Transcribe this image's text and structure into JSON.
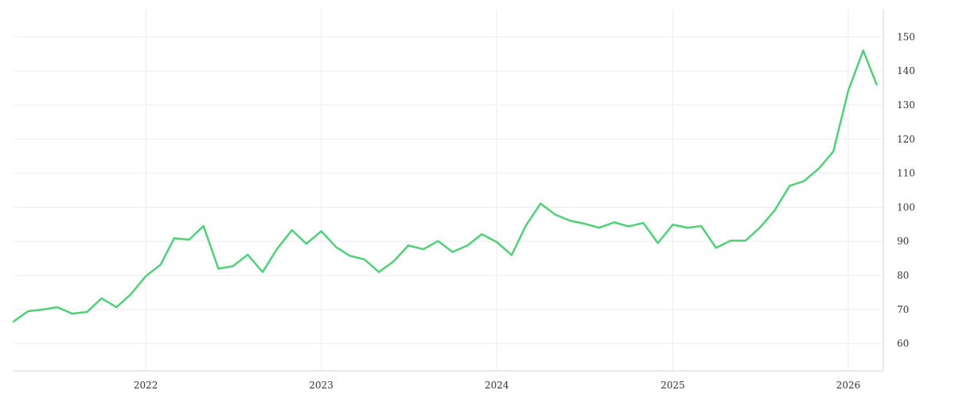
{
  "chart_data": {
    "type": "line",
    "title": "",
    "xlabel": "",
    "ylabel": "",
    "x_axis": {
      "type": "date",
      "range": [
        "2021-04-01",
        "2026-03-15"
      ],
      "ticks": [
        {
          "date": "2022-01-01",
          "label": "2022"
        },
        {
          "date": "2023-01-01",
          "label": "2023"
        },
        {
          "date": "2024-01-01",
          "label": "2024"
        },
        {
          "date": "2025-01-01",
          "label": "2025"
        },
        {
          "date": "2026-01-01",
          "label": "2026"
        }
      ]
    },
    "y_axis": {
      "position": "right",
      "range": [
        52,
        158
      ],
      "ticks": [
        60,
        70,
        80,
        90,
        100,
        110,
        120,
        130,
        140,
        150
      ]
    },
    "grid": true,
    "legend": "none",
    "series": [
      {
        "color": "#4fd17a",
        "points": [
          [
            "2021-04-01",
            66.5
          ],
          [
            "2021-05-01",
            69.5
          ],
          [
            "2021-06-01",
            70.0
          ],
          [
            "2021-07-01",
            70.7
          ],
          [
            "2021-08-01",
            68.8
          ],
          [
            "2021-09-01",
            69.3
          ],
          [
            "2021-10-01",
            73.3
          ],
          [
            "2021-11-01",
            70.7
          ],
          [
            "2021-12-01",
            74.5
          ],
          [
            "2022-01-01",
            79.8
          ],
          [
            "2022-02-01",
            83.2
          ],
          [
            "2022-03-01",
            90.9
          ],
          [
            "2022-04-01",
            90.5
          ],
          [
            "2022-05-01",
            94.5
          ],
          [
            "2022-06-01",
            82.0
          ],
          [
            "2022-07-01",
            82.7
          ],
          [
            "2022-08-01",
            86.1
          ],
          [
            "2022-09-01",
            81.0
          ],
          [
            "2022-10-01",
            87.8
          ],
          [
            "2022-11-01",
            93.3
          ],
          [
            "2022-12-01",
            89.3
          ],
          [
            "2023-01-01",
            93.0
          ],
          [
            "2023-02-01",
            88.3
          ],
          [
            "2023-03-01",
            85.8
          ],
          [
            "2023-04-01",
            84.7
          ],
          [
            "2023-05-01",
            81.0
          ],
          [
            "2023-06-01",
            84.2
          ],
          [
            "2023-07-01",
            88.8
          ],
          [
            "2023-08-01",
            87.7
          ],
          [
            "2023-09-01",
            90.1
          ],
          [
            "2023-10-01",
            86.9
          ],
          [
            "2023-11-01",
            88.8
          ],
          [
            "2023-12-01",
            92.1
          ],
          [
            "2024-01-01",
            89.8
          ],
          [
            "2024-02-01",
            86.0
          ],
          [
            "2024-03-01",
            94.5
          ],
          [
            "2024-04-01",
            101.1
          ],
          [
            "2024-05-01",
            97.9
          ],
          [
            "2024-06-01",
            96.1
          ],
          [
            "2024-07-01",
            95.2
          ],
          [
            "2024-08-01",
            94.0
          ],
          [
            "2024-09-01",
            95.6
          ],
          [
            "2024-10-01",
            94.4
          ],
          [
            "2024-11-01",
            95.4
          ],
          [
            "2024-12-01",
            89.5
          ],
          [
            "2025-01-01",
            94.9
          ],
          [
            "2025-02-01",
            94.0
          ],
          [
            "2025-03-01",
            94.5
          ],
          [
            "2025-04-01",
            88.1
          ],
          [
            "2025-05-01",
            90.2
          ],
          [
            "2025-06-01",
            90.2
          ],
          [
            "2025-07-01",
            94.0
          ],
          [
            "2025-08-01",
            99.1
          ],
          [
            "2025-09-01",
            106.3
          ],
          [
            "2025-10-01",
            107.7
          ],
          [
            "2025-11-01",
            111.4
          ],
          [
            "2025-12-01",
            116.4
          ],
          [
            "2026-01-01",
            134.2
          ],
          [
            "2026-02-01",
            146.0
          ],
          [
            "2026-03-01",
            136.0
          ]
        ]
      }
    ]
  }
}
